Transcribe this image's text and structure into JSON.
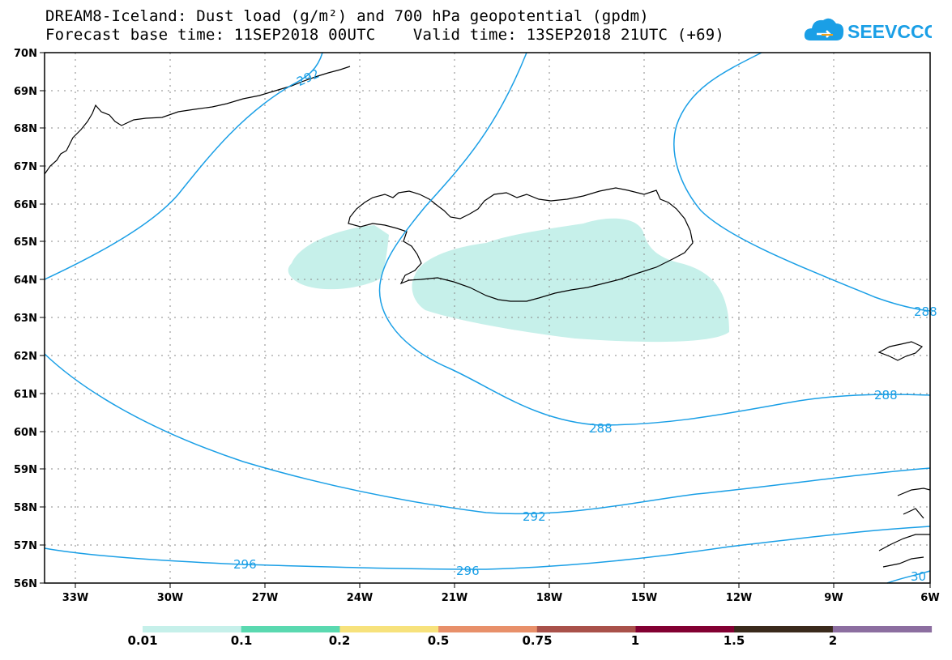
{
  "header": {
    "line1": "DREAM8-Iceland: Dust load (g/m²) and 700 hPa geopotential (gpdm)",
    "line2": "Forecast base time: 11SEP2018 00UTC    Valid time: 13SEP2018 21UTC (+69)"
  },
  "logo": {
    "text": "SEEVCCC",
    "icon": "cloud-icon",
    "color": "#1a9fe6"
  },
  "map": {
    "lat_ticks": [
      "70N",
      "69N",
      "68N",
      "67N",
      "66N",
      "65N",
      "64N",
      "63N",
      "62N",
      "61N",
      "60N",
      "59N",
      "58N",
      "57N",
      "56N"
    ],
    "lon_ticks": [
      "33W",
      "30W",
      "27W",
      "24W",
      "21W",
      "18W",
      "15W",
      "12W",
      "9W",
      "6W"
    ],
    "contour_labels": [
      "292",
      "288",
      "288",
      "288",
      "292",
      "296",
      "296",
      "30"
    ],
    "contour_color": "#1a9fe6",
    "dust_color": "#c6f0ea"
  },
  "colorbar": {
    "colors": [
      "#c6f0ea",
      "#5ad9b0",
      "#f7e27c",
      "#e8906a",
      "#a9514a",
      "#820032",
      "#3a2a1c",
      "#8c6ea0"
    ],
    "labels": [
      "0.01",
      "0.1",
      "0.2",
      "0.5",
      "0.75",
      "1",
      "1.5",
      "2"
    ]
  }
}
